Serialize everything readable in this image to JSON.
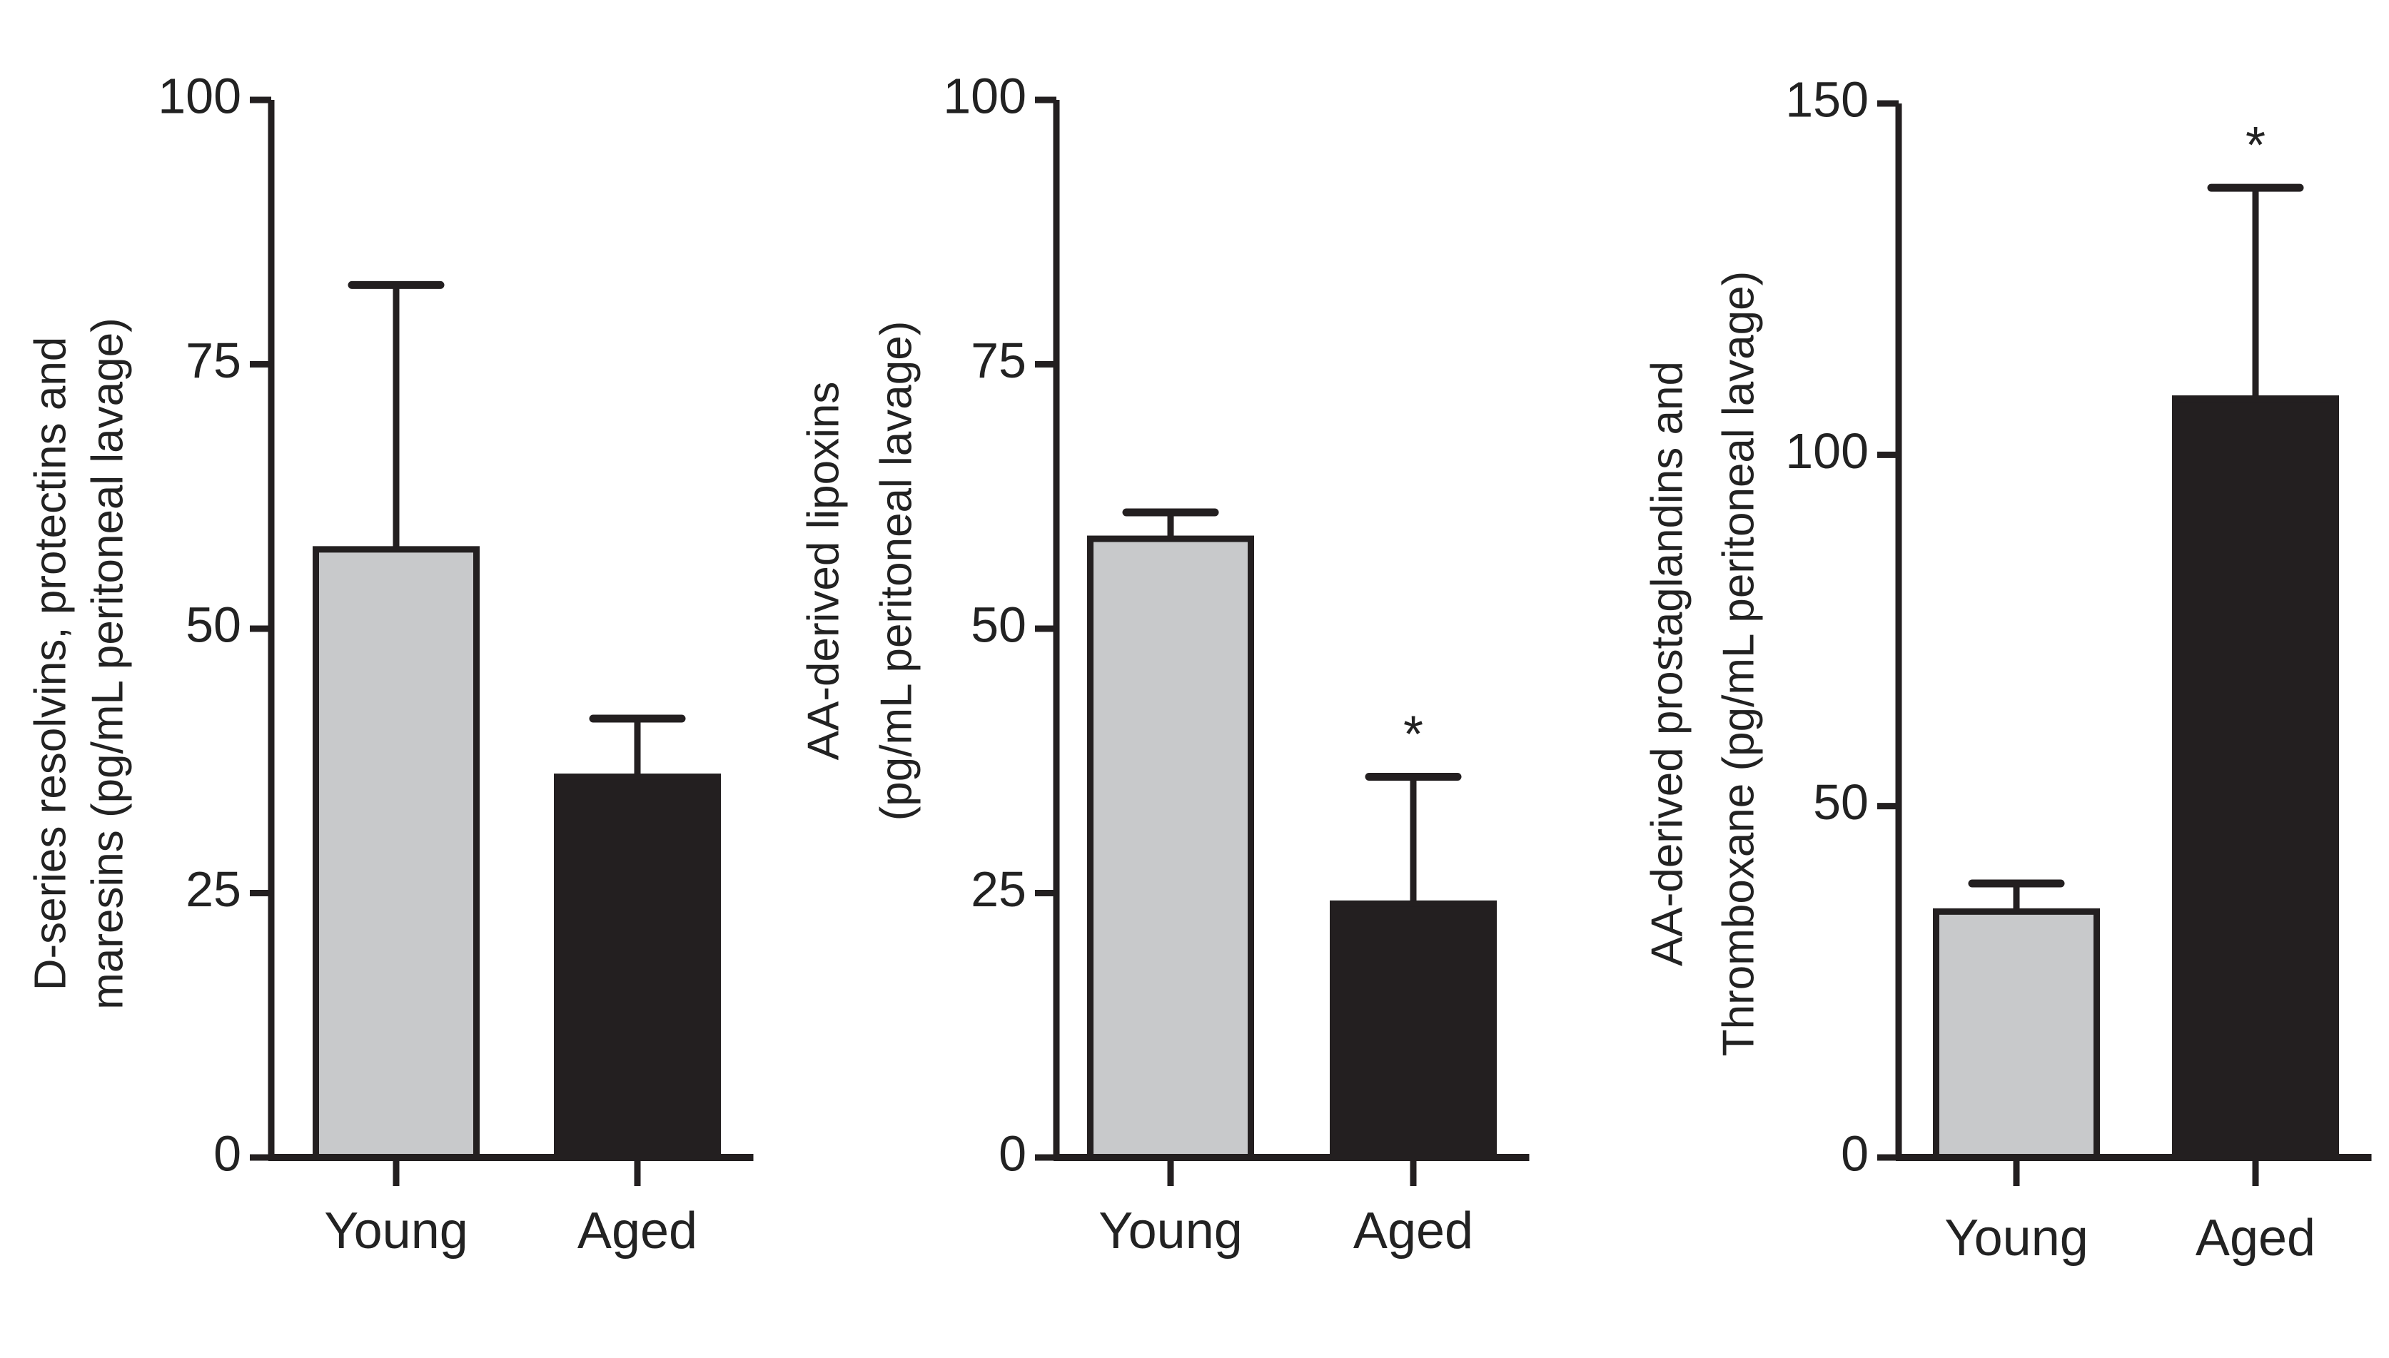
{
  "figure": {
    "colors": {
      "young": "#c8c9cb",
      "aged": "#231f20",
      "axis": "#231f20",
      "text": "#222222"
    }
  },
  "chart_data": [
    {
      "type": "bar",
      "title": "",
      "ylabel_lines": [
        "D-series resolvins, protectins and",
        "maresins (pg/mL peritoneal lavage)"
      ],
      "ylabel": "D-series resolvins, protectins and maresins (pg/mL peritoneal lavage)",
      "xlabel": "",
      "categories": [
        "Young",
        "Aged"
      ],
      "values": [
        57.5,
        36
      ],
      "errors": [
        25,
        5.5
      ],
      "significance": [
        "",
        ""
      ],
      "ylim": [
        0,
        100
      ],
      "yticks": [
        "0",
        "25",
        "50",
        "75",
        "100"
      ],
      "ytick_values": [
        0,
        25,
        50,
        75,
        100
      ],
      "grid": false
    },
    {
      "type": "bar",
      "title": "",
      "ylabel_lines": [
        "AA-derived lipoxins",
        "(pg/mL peritoneal lavage)"
      ],
      "ylabel": "AA-derived lipoxins (pg/mL peritoneal lavage)",
      "xlabel": "",
      "categories": [
        "Young",
        "Aged"
      ],
      "values": [
        58.5,
        24
      ],
      "errors": [
        2.5,
        12
      ],
      "significance": [
        "",
        "*"
      ],
      "ylim": [
        0,
        100
      ],
      "yticks": [
        "0",
        "25",
        "50",
        "75",
        "100"
      ],
      "ytick_values": [
        0,
        25,
        50,
        75,
        100
      ],
      "grid": false
    },
    {
      "type": "bar",
      "title": "",
      "ylabel_lines": [
        "AA-derived prostaglandins and",
        "Thromboxane (pg/mL peritoneal lavage)"
      ],
      "ylabel": "AA-derived prostaglandins and Thromboxane (pg/mL peritoneal lavage)",
      "xlabel": "",
      "categories": [
        "Young",
        "Aged"
      ],
      "values": [
        35,
        108
      ],
      "errors": [
        4,
        30
      ],
      "significance": [
        "",
        "*"
      ],
      "ylim": [
        0,
        150
      ],
      "yticks": [
        "0",
        "50",
        "100",
        "150"
      ],
      "ytick_values": [
        0,
        50,
        100,
        150
      ],
      "grid": false
    }
  ]
}
